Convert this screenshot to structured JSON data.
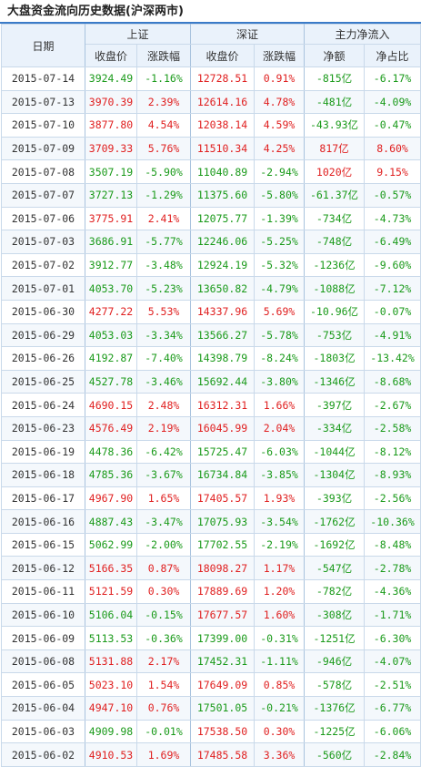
{
  "title": "大盘资金流向历史数据(沪深两市)",
  "header": {
    "date": "日期",
    "groups": [
      "上证",
      "深证",
      "主力净流入"
    ],
    "sub": [
      "收盘价",
      "涨跌幅",
      "收盘价",
      "涨跌幅",
      "净额",
      "净占比"
    ]
  },
  "colors": {
    "up": "#e02020",
    "down": "#1a9a1a",
    "header_bg": "#eaf2fb",
    "title_rule": "#3a7bc8"
  },
  "rows": [
    {
      "date": "2015-07-14",
      "sh_close": "3924.49",
      "sh_chg": "-1.16%",
      "sz_close": "12728.51",
      "sz_chg": "0.91%",
      "net": "-815亿",
      "ratio": "-6.17%"
    },
    {
      "date": "2015-07-13",
      "sh_close": "3970.39",
      "sh_chg": "2.39%",
      "sz_close": "12614.16",
      "sz_chg": "4.78%",
      "net": "-481亿",
      "ratio": "-4.09%"
    },
    {
      "date": "2015-07-10",
      "sh_close": "3877.80",
      "sh_chg": "4.54%",
      "sz_close": "12038.14",
      "sz_chg": "4.59%",
      "net": "-43.93亿",
      "ratio": "-0.47%"
    },
    {
      "date": "2015-07-09",
      "sh_close": "3709.33",
      "sh_chg": "5.76%",
      "sz_close": "11510.34",
      "sz_chg": "4.25%",
      "net": "817亿",
      "ratio": "8.60%"
    },
    {
      "date": "2015-07-08",
      "sh_close": "3507.19",
      "sh_chg": "-5.90%",
      "sz_close": "11040.89",
      "sz_chg": "-2.94%",
      "net": "1020亿",
      "ratio": "9.15%"
    },
    {
      "date": "2015-07-07",
      "sh_close": "3727.13",
      "sh_chg": "-1.29%",
      "sz_close": "11375.60",
      "sz_chg": "-5.80%",
      "net": "-61.37亿",
      "ratio": "-0.57%"
    },
    {
      "date": "2015-07-06",
      "sh_close": "3775.91",
      "sh_chg": "2.41%",
      "sz_close": "12075.77",
      "sz_chg": "-1.39%",
      "net": "-734亿",
      "ratio": "-4.73%"
    },
    {
      "date": "2015-07-03",
      "sh_close": "3686.91",
      "sh_chg": "-5.77%",
      "sz_close": "12246.06",
      "sz_chg": "-5.25%",
      "net": "-748亿",
      "ratio": "-6.49%"
    },
    {
      "date": "2015-07-02",
      "sh_close": "3912.77",
      "sh_chg": "-3.48%",
      "sz_close": "12924.19",
      "sz_chg": "-5.32%",
      "net": "-1236亿",
      "ratio": "-9.60%"
    },
    {
      "date": "2015-07-01",
      "sh_close": "4053.70",
      "sh_chg": "-5.23%",
      "sz_close": "13650.82",
      "sz_chg": "-4.79%",
      "net": "-1088亿",
      "ratio": "-7.12%"
    },
    {
      "date": "2015-06-30",
      "sh_close": "4277.22",
      "sh_chg": "5.53%",
      "sz_close": "14337.96",
      "sz_chg": "5.69%",
      "net": "-10.96亿",
      "ratio": "-0.07%"
    },
    {
      "date": "2015-06-29",
      "sh_close": "4053.03",
      "sh_chg": "-3.34%",
      "sz_close": "13566.27",
      "sz_chg": "-5.78%",
      "net": "-753亿",
      "ratio": "-4.91%"
    },
    {
      "date": "2015-06-26",
      "sh_close": "4192.87",
      "sh_chg": "-7.40%",
      "sz_close": "14398.79",
      "sz_chg": "-8.24%",
      "net": "-1803亿",
      "ratio": "-13.42%"
    },
    {
      "date": "2015-06-25",
      "sh_close": "4527.78",
      "sh_chg": "-3.46%",
      "sz_close": "15692.44",
      "sz_chg": "-3.80%",
      "net": "-1346亿",
      "ratio": "-8.68%"
    },
    {
      "date": "2015-06-24",
      "sh_close": "4690.15",
      "sh_chg": "2.48%",
      "sz_close": "16312.31",
      "sz_chg": "1.66%",
      "net": "-397亿",
      "ratio": "-2.67%"
    },
    {
      "date": "2015-06-23",
      "sh_close": "4576.49",
      "sh_chg": "2.19%",
      "sz_close": "16045.99",
      "sz_chg": "2.04%",
      "net": "-334亿",
      "ratio": "-2.58%"
    },
    {
      "date": "2015-06-19",
      "sh_close": "4478.36",
      "sh_chg": "-6.42%",
      "sz_close": "15725.47",
      "sz_chg": "-6.03%",
      "net": "-1044亿",
      "ratio": "-8.12%"
    },
    {
      "date": "2015-06-18",
      "sh_close": "4785.36",
      "sh_chg": "-3.67%",
      "sz_close": "16734.84",
      "sz_chg": "-3.85%",
      "net": "-1304亿",
      "ratio": "-8.93%"
    },
    {
      "date": "2015-06-17",
      "sh_close": "4967.90",
      "sh_chg": "1.65%",
      "sz_close": "17405.57",
      "sz_chg": "1.93%",
      "net": "-393亿",
      "ratio": "-2.56%"
    },
    {
      "date": "2015-06-16",
      "sh_close": "4887.43",
      "sh_chg": "-3.47%",
      "sz_close": "17075.93",
      "sz_chg": "-3.54%",
      "net": "-1762亿",
      "ratio": "-10.36%"
    },
    {
      "date": "2015-06-15",
      "sh_close": "5062.99",
      "sh_chg": "-2.00%",
      "sz_close": "17702.55",
      "sz_chg": "-2.19%",
      "net": "-1692亿",
      "ratio": "-8.48%"
    },
    {
      "date": "2015-06-12",
      "sh_close": "5166.35",
      "sh_chg": "0.87%",
      "sz_close": "18098.27",
      "sz_chg": "1.17%",
      "net": "-547亿",
      "ratio": "-2.78%"
    },
    {
      "date": "2015-06-11",
      "sh_close": "5121.59",
      "sh_chg": "0.30%",
      "sz_close": "17889.69",
      "sz_chg": "1.20%",
      "net": "-782亿",
      "ratio": "-4.36%"
    },
    {
      "date": "2015-06-10",
      "sh_close": "5106.04",
      "sh_chg": "-0.15%",
      "sz_close": "17677.57",
      "sz_chg": "1.60%",
      "net": "-308亿",
      "ratio": "-1.71%"
    },
    {
      "date": "2015-06-09",
      "sh_close": "5113.53",
      "sh_chg": "-0.36%",
      "sz_close": "17399.00",
      "sz_chg": "-0.31%",
      "net": "-1251亿",
      "ratio": "-6.30%"
    },
    {
      "date": "2015-06-08",
      "sh_close": "5131.88",
      "sh_chg": "2.17%",
      "sz_close": "17452.31",
      "sz_chg": "-1.11%",
      "net": "-946亿",
      "ratio": "-4.07%"
    },
    {
      "date": "2015-06-05",
      "sh_close": "5023.10",
      "sh_chg": "1.54%",
      "sz_close": "17649.09",
      "sz_chg": "0.85%",
      "net": "-578亿",
      "ratio": "-2.51%"
    },
    {
      "date": "2015-06-04",
      "sh_close": "4947.10",
      "sh_chg": "0.76%",
      "sz_close": "17501.05",
      "sz_chg": "-0.21%",
      "net": "-1376亿",
      "ratio": "-6.77%"
    },
    {
      "date": "2015-06-03",
      "sh_close": "4909.98",
      "sh_chg": "-0.01%",
      "sz_close": "17538.50",
      "sz_chg": "0.30%",
      "net": "-1225亿",
      "ratio": "-6.06%"
    },
    {
      "date": "2015-06-02",
      "sh_close": "4910.53",
      "sh_chg": "1.69%",
      "sz_close": "17485.58",
      "sz_chg": "3.36%",
      "net": "-560亿",
      "ratio": "-2.84%"
    }
  ]
}
